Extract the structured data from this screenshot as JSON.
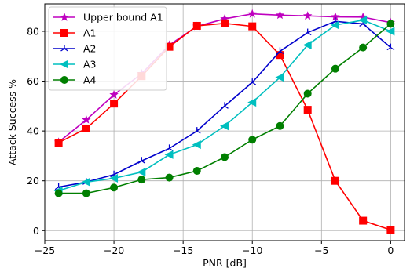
{
  "chart_data": {
    "type": "line",
    "xlabel": "PNR [dB]",
    "ylabel": "Attack Success %",
    "xlim": [
      -25,
      1
    ],
    "ylim": [
      -4,
      91
    ],
    "xticks": [
      -25,
      -20,
      -15,
      -10,
      -5,
      0
    ],
    "xtick_labels": [
      "−25",
      "−20",
      "−15",
      "−10",
      "−5",
      "0"
    ],
    "yticks": [
      0,
      20,
      40,
      60,
      80
    ],
    "ytick_labels": [
      "0",
      "20",
      "40",
      "60",
      "80"
    ],
    "grid": true,
    "legend_position": "top-left",
    "x": [
      -24,
      -22,
      -20,
      -18,
      -16,
      -14,
      -12,
      -10,
      -8,
      -6,
      -4,
      -2,
      0
    ],
    "series": [
      {
        "name": "Upper bound A1",
        "color": "#bf00bf",
        "marker": "star",
        "values": [
          35.5,
          44.5,
          54.5,
          63,
          74.5,
          82,
          85,
          87,
          86.5,
          86.2,
          85.8,
          85.7,
          83.5
        ]
      },
      {
        "name": "A1",
        "color": "#ff0000",
        "marker": "square",
        "values": [
          35.3,
          41,
          51,
          62,
          73.8,
          82.2,
          83.2,
          82,
          70.5,
          48.5,
          20,
          4,
          0.3
        ]
      },
      {
        "name": "A2",
        "color": "#0000cc",
        "marker": "tri_up",
        "values": [
          17.5,
          19.5,
          22.5,
          28,
          33,
          40,
          50,
          59.5,
          72,
          79.5,
          84,
          83,
          73.5
        ]
      },
      {
        "name": "A3",
        "color": "#00bfbf",
        "marker": "triangle_left",
        "values": [
          16,
          19.5,
          21,
          23.5,
          30.5,
          34.5,
          42,
          51.5,
          61.5,
          74.5,
          82.5,
          84.5,
          80
        ]
      },
      {
        "name": "A4",
        "color": "#007f00",
        "marker": "circle",
        "values": [
          15,
          15,
          17.3,
          20.5,
          21.3,
          24,
          29.5,
          36.5,
          42,
          55,
          65,
          73.5,
          83
        ]
      }
    ]
  }
}
